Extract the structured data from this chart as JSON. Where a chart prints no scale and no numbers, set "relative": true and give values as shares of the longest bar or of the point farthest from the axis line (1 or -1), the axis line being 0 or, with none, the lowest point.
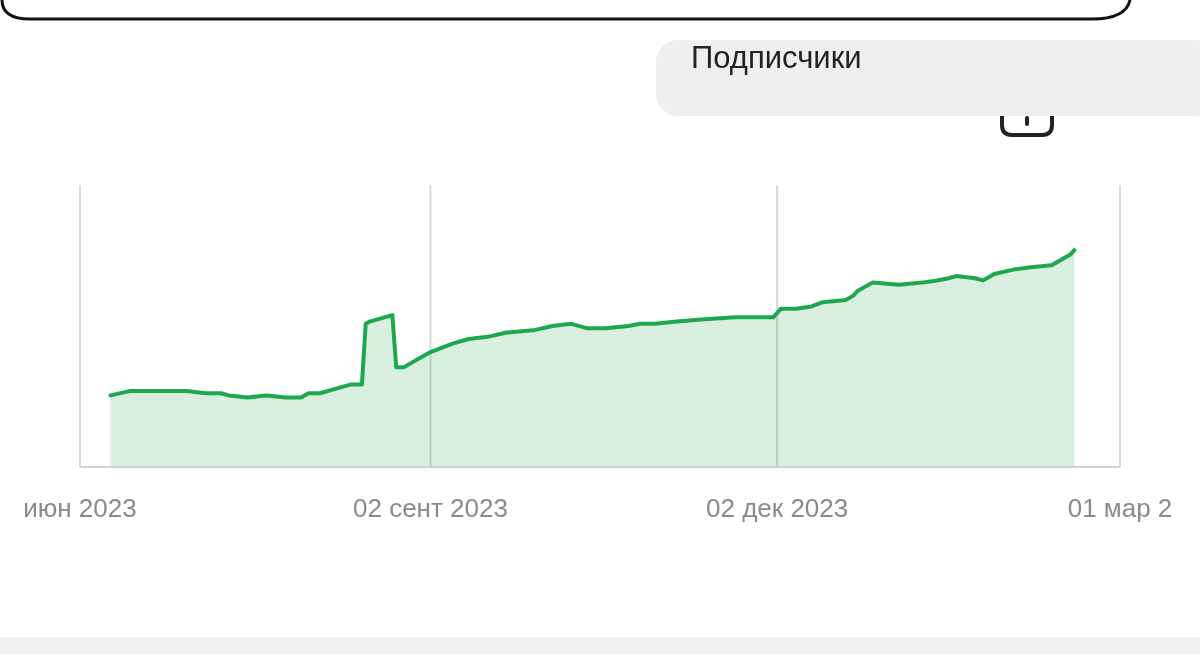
{
  "chart_data": {
    "type": "area",
    "title": "Подписчики",
    "relative": true,
    "x": [
      "2023-06-10",
      "2023-06-15",
      "2023-06-30",
      "2023-07-05",
      "2023-07-09",
      "2023-07-11",
      "2023-07-16",
      "2023-07-21",
      "2023-07-26",
      "2023-07-30",
      "2023-08-01",
      "2023-08-04",
      "2023-08-08",
      "2023-08-12",
      "2023-08-15",
      "2023-08-16",
      "2023-08-17",
      "2023-08-23",
      "2023-08-24",
      "2023-08-26",
      "2023-08-28",
      "2023-08-30",
      "2023-09-02",
      "2023-09-08",
      "2023-09-12",
      "2023-09-17",
      "2023-09-22",
      "2023-09-29",
      "2023-10-04",
      "2023-10-09",
      "2023-10-13",
      "2023-10-18",
      "2023-10-24",
      "2023-10-27",
      "2023-10-31",
      "2023-11-05",
      "2023-11-12",
      "2023-11-21",
      "2023-11-29",
      "2023-12-01",
      "2023-12-03",
      "2023-12-07",
      "2023-12-11",
      "2023-12-14",
      "2023-12-20",
      "2023-12-22",
      "2023-12-23",
      "2023-12-27",
      "2024-01-03",
      "2024-01-09",
      "2024-01-13",
      "2024-01-16",
      "2024-01-18",
      "2024-01-23",
      "2024-01-25",
      "2024-01-28",
      "2024-02-02",
      "2024-02-06",
      "2024-02-12",
      "2024-02-14",
      "2024-02-17",
      "2024-02-18"
    ],
    "series": [
      {
        "color": "#1ea84e",
        "values": [
          0.33,
          0.35,
          0.35,
          0.34,
          0.34,
          0.33,
          0.32,
          0.33,
          0.32,
          0.32,
          0.34,
          0.34,
          0.36,
          0.38,
          0.38,
          0.66,
          0.67,
          0.7,
          0.46,
          0.46,
          0.48,
          0.5,
          0.53,
          0.57,
          0.59,
          0.6,
          0.62,
          0.63,
          0.65,
          0.66,
          0.64,
          0.64,
          0.65,
          0.66,
          0.66,
          0.67,
          0.68,
          0.69,
          0.69,
          0.69,
          0.73,
          0.73,
          0.74,
          0.76,
          0.77,
          0.79,
          0.81,
          0.85,
          0.84,
          0.85,
          0.86,
          0.87,
          0.88,
          0.87,
          0.86,
          0.89,
          0.91,
          0.92,
          0.93,
          0.95,
          0.98,
          1
        ]
      }
    ],
    "xlim": [
      "2023-06-02",
      "2024-03-01"
    ],
    "xticks": [
      {
        "value": "2023-06-02",
        "label": "июн 2023"
      },
      {
        "value": "2023-09-02",
        "label": "02 сент 2023"
      },
      {
        "value": "2023-12-02",
        "label": "02 дек 2023"
      },
      {
        "value": "2024-03-01",
        "label": "01 мар 2"
      }
    ],
    "grid": "x"
  }
}
